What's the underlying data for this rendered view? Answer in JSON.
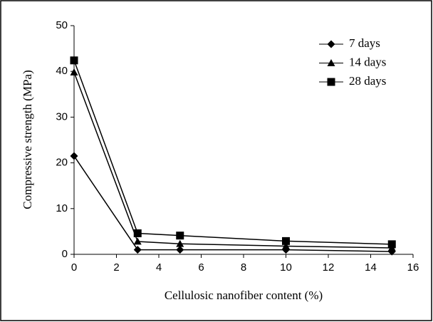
{
  "chart_data": {
    "type": "line",
    "x_label": "Cellulosic nanofiber content (%)",
    "y_label": "Compressive strength  (MPa)",
    "x": [
      0,
      3,
      5,
      10,
      15
    ],
    "series": [
      {
        "name": "7 days",
        "color": "#000000",
        "marker": "diamond",
        "values": [
          21.5,
          1.0,
          1.0,
          1.0,
          0.6
        ]
      },
      {
        "name": "14 days",
        "color": "#000000",
        "marker": "triangle",
        "values": [
          39.8,
          2.8,
          2.3,
          1.8,
          1.4
        ]
      },
      {
        "name": "28 days",
        "color": "#000000",
        "marker": "square",
        "values": [
          42.4,
          4.6,
          4.1,
          2.9,
          2.2
        ]
      }
    ],
    "xlim": [
      0,
      16
    ],
    "xticks": [
      0,
      2,
      4,
      6,
      8,
      10,
      12,
      14,
      16
    ],
    "ylim": [
      0,
      50
    ],
    "yticks": [
      0,
      10,
      20,
      30,
      40,
      50
    ],
    "grid": false,
    "legend": "top-right"
  }
}
